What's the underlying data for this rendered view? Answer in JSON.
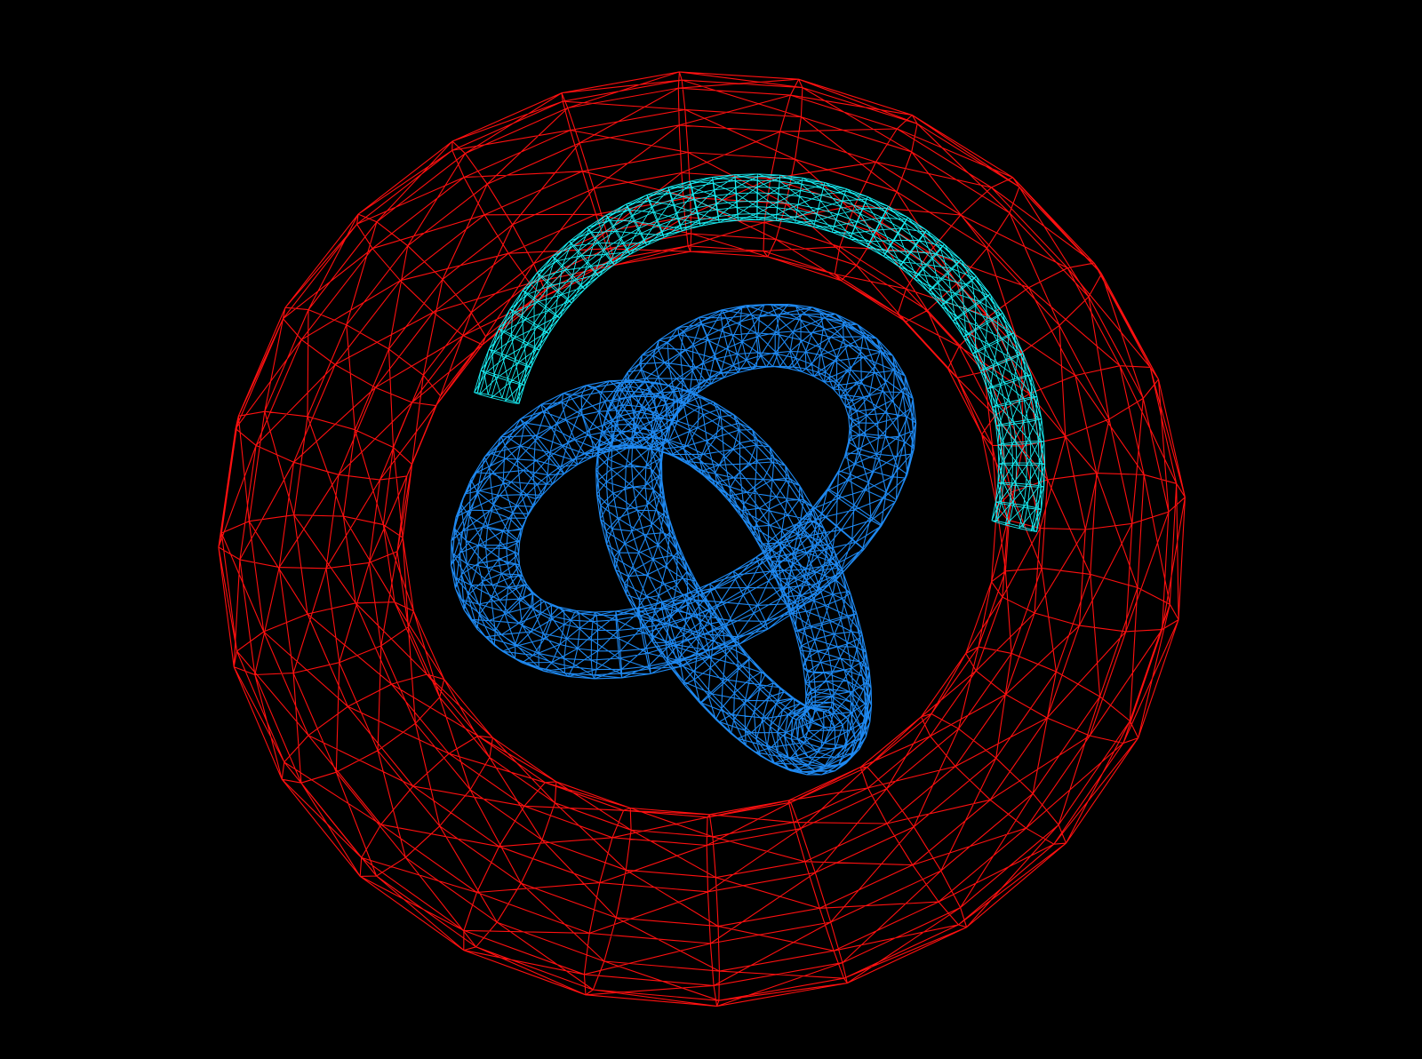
{
  "scene": {
    "background": "#000000",
    "objects": [
      {
        "name": "outer-torus",
        "kind": "torus-wireframe",
        "color": "#ff1010"
      },
      {
        "name": "trefoil-knot",
        "kind": "knot-tube-wireframe",
        "color": "#1e88f0"
      },
      {
        "name": "arc-tube",
        "kind": "partial-torus-wireframe",
        "color": "#18ecf2"
      }
    ]
  }
}
